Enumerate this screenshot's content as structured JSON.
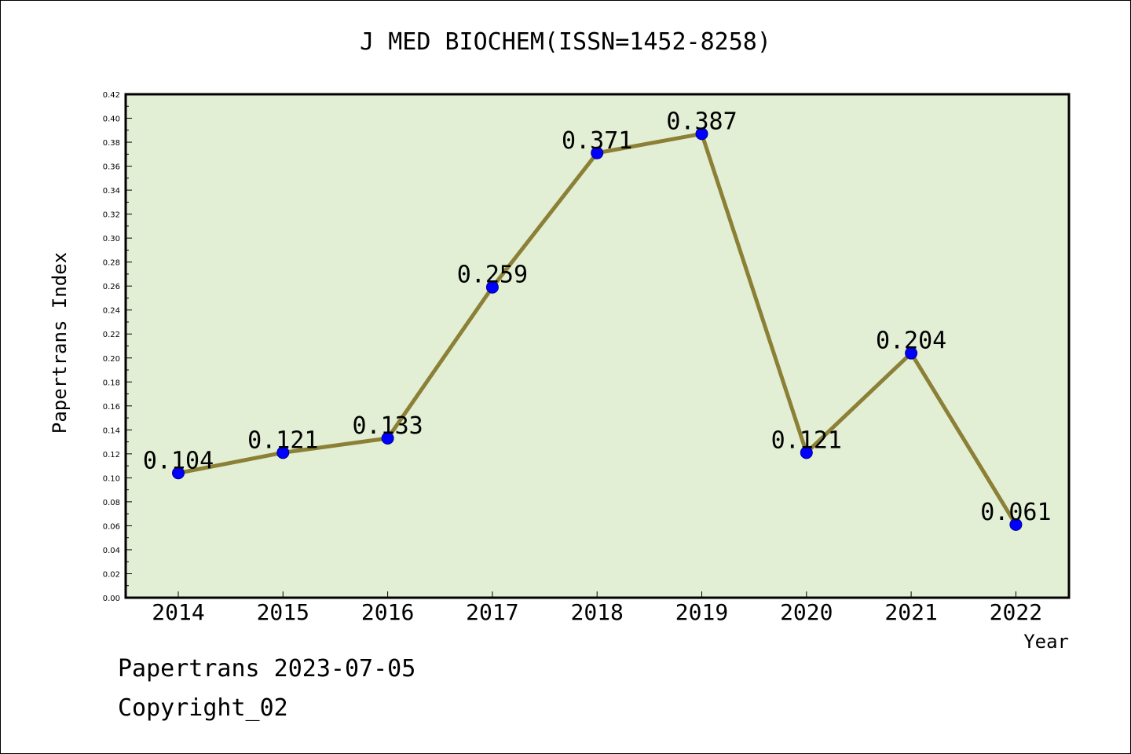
{
  "chart_data": {
    "type": "line",
    "title": "J MED BIOCHEM(ISSN=1452-8258)",
    "xlabel": "Year",
    "ylabel": "Papertrans Index",
    "categories": [
      "2014",
      "2015",
      "2016",
      "2017",
      "2018",
      "2019",
      "2020",
      "2021",
      "2022"
    ],
    "series": [
      {
        "values": [
          0.104,
          0.121,
          0.133,
          0.259,
          0.371,
          0.387,
          0.121,
          0.204,
          0.061
        ],
        "labels": [
          "0.104",
          "0.121",
          "0.133",
          "0.259",
          "0.371",
          "0.387",
          "0.121",
          "0.204",
          "0.061"
        ]
      }
    ],
    "ylim": [
      0,
      0.42
    ],
    "yticks": [
      "0.00",
      "0.02",
      "0.04",
      "0.06",
      "0.08",
      "0.10",
      "0.12",
      "0.14",
      "0.16",
      "0.18",
      "0.20",
      "0.22",
      "0.24",
      "0.26",
      "0.28",
      "0.30",
      "0.32",
      "0.34",
      "0.36",
      "0.38",
      "0.40",
      "0.42"
    ],
    "grid": false,
    "plot_background": "#e2efd5",
    "line_color": "#8b8035",
    "marker_color": "#0000ff"
  },
  "footer": {
    "line1": "Papertrans 2023-07-05",
    "line2": "Copyright_02"
  }
}
